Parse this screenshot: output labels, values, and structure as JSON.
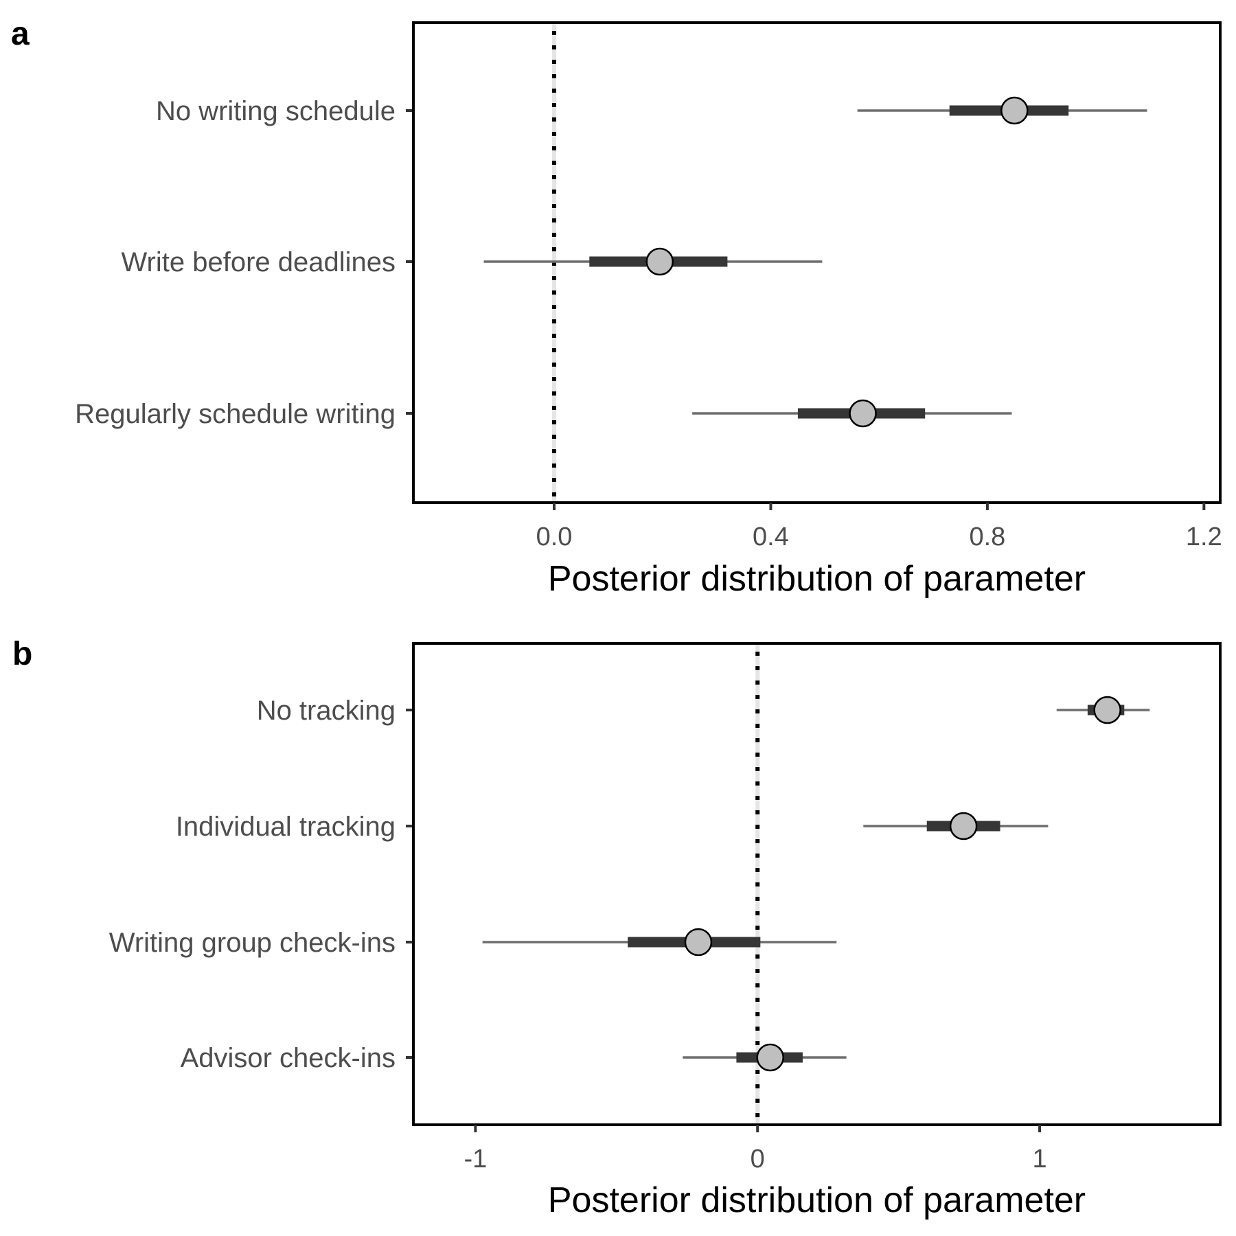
{
  "chart_data": [
    {
      "type": "interval",
      "panel": "a",
      "xlabel": "Posterior distribution of parameter",
      "ylabel": "",
      "xlim": [
        -0.26,
        1.23
      ],
      "xticks": [
        0.0,
        0.4,
        0.8,
        1.2
      ],
      "xtick_labels": [
        "0.0",
        "0.4",
        "0.8",
        "1.2"
      ],
      "reference_line": 0,
      "grid": false,
      "categories": [
        "No writing schedule",
        "Write before deadlines",
        "Regularly schedule writing"
      ],
      "point": [
        0.85,
        0.195,
        0.57
      ],
      "inner_interval": [
        [
          0.73,
          0.95
        ],
        [
          0.065,
          0.32
        ],
        [
          0.45,
          0.685
        ]
      ],
      "outer_interval": [
        [
          0.56,
          1.095
        ],
        [
          -0.13,
          0.495
        ],
        [
          0.255,
          0.845
        ]
      ]
    },
    {
      "type": "interval",
      "panel": "b",
      "xlabel": "Posterior distribution of parameter",
      "ylabel": "",
      "xlim": [
        -1.22,
        1.64
      ],
      "xticks": [
        -1,
        0,
        1
      ],
      "xtick_labels": [
        "-1",
        "0",
        "1"
      ],
      "reference_line": 0,
      "grid": false,
      "categories": [
        "No tracking",
        "Individual tracking",
        "Writing group check-ins",
        "Advisor check-ins"
      ],
      "point": [
        1.24,
        0.73,
        -0.21,
        0.045
      ],
      "inner_interval": [
        [
          1.17,
          1.3
        ],
        [
          0.6,
          0.86
        ],
        [
          -0.46,
          0.01
        ],
        [
          -0.075,
          0.16
        ]
      ],
      "outer_interval": [
        [
          1.06,
          1.39
        ],
        [
          0.375,
          1.03
        ],
        [
          -0.975,
          0.28
        ],
        [
          -0.265,
          0.315
        ]
      ]
    }
  ]
}
